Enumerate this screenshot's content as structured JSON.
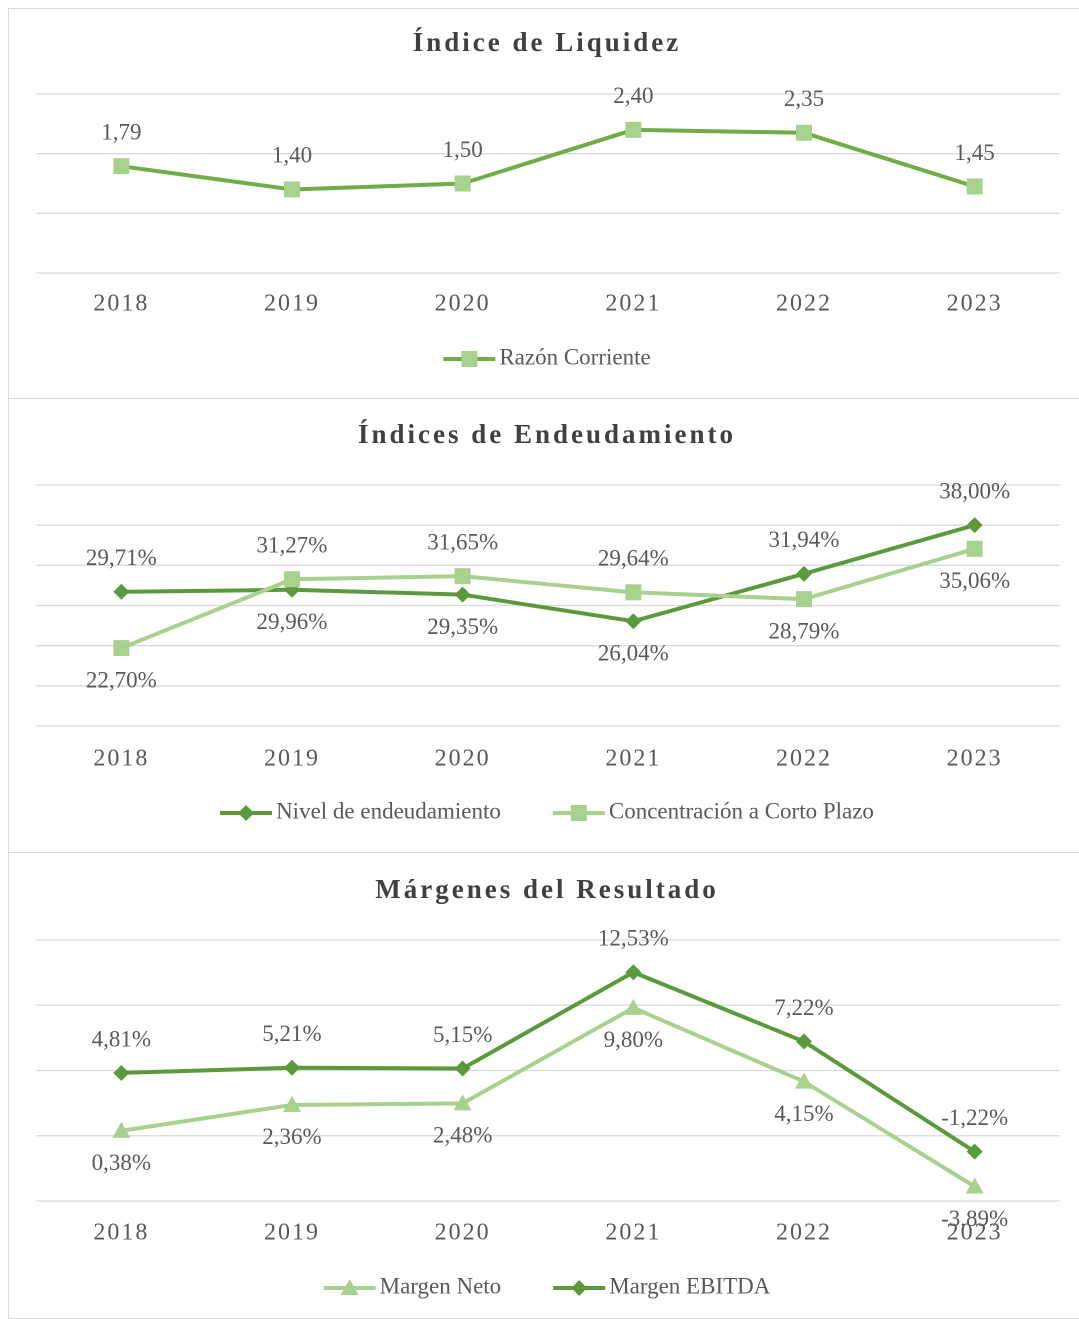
{
  "chart_data": [
    {
      "type": "line",
      "title": "Índice de Liquidez",
      "categories": [
        "2018",
        "2019",
        "2020",
        "2021",
        "2022",
        "2023"
      ],
      "series": [
        {
          "name": "Razón Corriente",
          "color": "#70ad47",
          "marker_color": "#a9d18e",
          "marker": "square",
          "values": [
            1.79,
            1.4,
            1.5,
            2.4,
            2.35,
            1.45
          ],
          "value_labels": [
            "1,79",
            "1,40",
            "1,50",
            "2,40",
            "2,35",
            "1,45"
          ]
        }
      ],
      "ylim": [
        0,
        3
      ],
      "yticks": [
        0,
        1,
        2,
        3
      ],
      "grid": true,
      "legend": "bottom"
    },
    {
      "type": "line",
      "title": "Índices de Endeudamiento",
      "categories": [
        "2018",
        "2019",
        "2020",
        "2021",
        "2022",
        "2023"
      ],
      "series": [
        {
          "name": "Nivel de endeudamiento",
          "color": "#5b9a3c",
          "marker_color": "#5b9a3c",
          "marker": "diamond",
          "values": [
            29.71,
            29.96,
            29.35,
            26.04,
            31.94,
            38.0
          ],
          "value_labels": [
            "29,71%",
            "29,96%",
            "29,35%",
            "26,04%",
            "31,94%",
            "38,00%"
          ]
        },
        {
          "name": "Concentración a Corto Plazo",
          "color": "#a9d18e",
          "marker_color": "#a9d18e",
          "marker": "square",
          "values": [
            22.7,
            31.27,
            31.65,
            29.64,
            28.79,
            35.06
          ],
          "value_labels": [
            "22,70%",
            "31,27%",
            "31,65%",
            "29,64%",
            "28,79%",
            "35,06%"
          ]
        }
      ],
      "ylim": [
        13,
        43
      ],
      "yticks": [
        13,
        18,
        23,
        28,
        33,
        38,
        43
      ],
      "grid": true,
      "legend": "bottom"
    },
    {
      "type": "line",
      "title": "Márgenes del Resultado",
      "categories": [
        "2018",
        "2019",
        "2020",
        "2021",
        "2022",
        "2023"
      ],
      "series": [
        {
          "name": "Margen Neto",
          "color": "#a9d18e",
          "marker_color": "#a9d18e",
          "marker": "triangle",
          "values": [
            0.38,
            2.36,
            2.48,
            9.8,
            4.15,
            -3.89
          ],
          "value_labels": [
            "0,38%",
            "2,36%",
            "2,48%",
            "9,80%",
            "4,15%",
            "-3,89%"
          ]
        },
        {
          "name": "Margen EBITDA",
          "color": "#5b9a3c",
          "marker_color": "#5b9a3c",
          "marker": "diamond",
          "values": [
            4.81,
            5.21,
            5.15,
            12.53,
            7.22,
            -1.22
          ],
          "value_labels": [
            "4,81%",
            "5,21%",
            "5,15%",
            "12,53%",
            "7,22%",
            "-1,22%"
          ]
        }
      ],
      "ylim": [
        -5,
        15
      ],
      "yticks": [
        -5,
        0,
        5,
        10,
        15
      ],
      "grid": true,
      "legend": "bottom"
    }
  ]
}
